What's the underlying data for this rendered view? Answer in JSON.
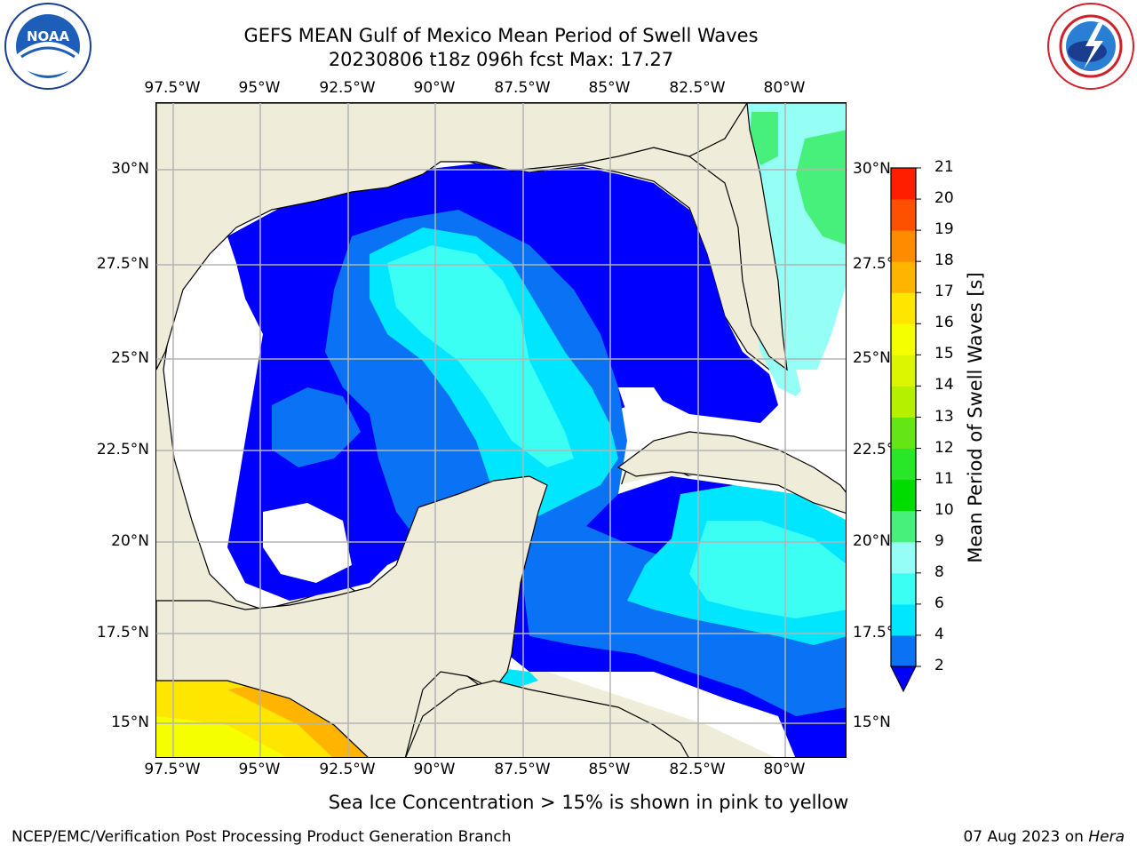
{
  "title": {
    "line1": "GEFS MEAN Gulf of Mexico Mean Period of Swell Waves",
    "line2": "20230806 t18z 096h fcst   Max: 17.27"
  },
  "logos": {
    "noaa": {
      "icon": "noaa-logo",
      "text": "NOAA",
      "ring_text": "NATIONAL OCEANIC AND ATMOSPHERIC ADMINISTRATION · U.S. DEPARTMENT OF COMMERCE"
    },
    "nws": {
      "icon": "nws-logo",
      "ring_text": "NATIONAL WEATHER SERVICE"
    }
  },
  "map": {
    "lon_ticks": [
      "97.5°W",
      "95°W",
      "92.5°W",
      "90°W",
      "87.5°W",
      "85°W",
      "82.5°W",
      "80°W"
    ],
    "lat_ticks_left": [
      "30°N",
      "27.5°N",
      "25°N",
      "22.5°N",
      "20°N",
      "17.5°N",
      "15°N"
    ],
    "lat_ticks_right": [
      "30°N",
      "27.5°N",
      "25°N",
      "22.5°N",
      "20°N",
      "17.5°N",
      "15°N"
    ],
    "lon_range": [
      -98,
      -78.2
    ],
    "lat_range": [
      14,
      31.8
    ],
    "colors": {
      "land": "#efedd9",
      "no_data": "#ffffff",
      "grid": "#b4b4b4",
      "coast": "#000000"
    }
  },
  "colorbar": {
    "title": "Mean Period of Swell Waves [s]",
    "levels": [
      "2",
      "4",
      "6",
      "8",
      "9",
      "10",
      "11",
      "12",
      "13",
      "14",
      "15",
      "16",
      "17",
      "18",
      "19",
      "20",
      "21"
    ],
    "colors": [
      "#0a73f5",
      "#00e6ff",
      "#3cfff4",
      "#96fff5",
      "#46f07a",
      "#00dc00",
      "#28e628",
      "#64e614",
      "#b4f000",
      "#dcf500",
      "#f5ff00",
      "#ffe600",
      "#ffb400",
      "#ff8c00",
      "#ff5000",
      "#ff1e00"
    ],
    "extend_color": "#0000ff"
  },
  "footnote": "Sea Ice Concentration > 15% is shown in pink to yellow",
  "credit": {
    "left": "NCEP/EMC/Verification Post Processing Product Generation Branch",
    "right_date": "07 Aug 2023 on ",
    "right_host": "Hera"
  }
}
